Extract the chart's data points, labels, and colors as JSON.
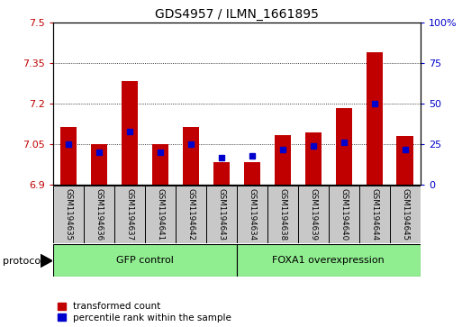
{
  "title": "GDS4957 / ILMN_1661895",
  "samples": [
    "GSM1194635",
    "GSM1194636",
    "GSM1194637",
    "GSM1194641",
    "GSM1194642",
    "GSM1194643",
    "GSM1194634",
    "GSM1194638",
    "GSM1194639",
    "GSM1194640",
    "GSM1194644",
    "GSM1194645"
  ],
  "transformed_count": [
    7.115,
    7.05,
    7.285,
    7.05,
    7.115,
    6.985,
    6.985,
    7.085,
    7.095,
    7.185,
    7.39,
    7.08
  ],
  "percentile_rank": [
    25,
    20,
    33,
    20,
    25,
    17,
    18,
    22,
    24,
    26,
    50,
    22
  ],
  "ylim_left": [
    6.9,
    7.5
  ],
  "ylim_right": [
    0,
    100
  ],
  "yticks_left": [
    6.9,
    7.05,
    7.2,
    7.35,
    7.5
  ],
  "yticks_right": [
    0,
    25,
    50,
    75,
    100
  ],
  "ytick_labels_right": [
    "0",
    "25",
    "50",
    "75",
    "100%"
  ],
  "bar_color": "#C00000",
  "percentile_color": "#0000CC",
  "bar_bottom": 6.9,
  "group1_label": "GFP control",
  "group2_label": "FOXA1 overexpression",
  "group1_indices": [
    0,
    1,
    2,
    3,
    4,
    5
  ],
  "group2_indices": [
    6,
    7,
    8,
    9,
    10,
    11
  ],
  "group_color": "#90EE90",
  "protocol_label": "protocol",
  "legend1": "transformed count",
  "legend2": "percentile rank within the sample",
  "grid_color": "#000000",
  "plot_bg_color": "#FFFFFF",
  "label_bg_color": "#C8C8C8",
  "title_fontsize": 10,
  "tick_fontsize": 8,
  "bar_width": 0.55
}
